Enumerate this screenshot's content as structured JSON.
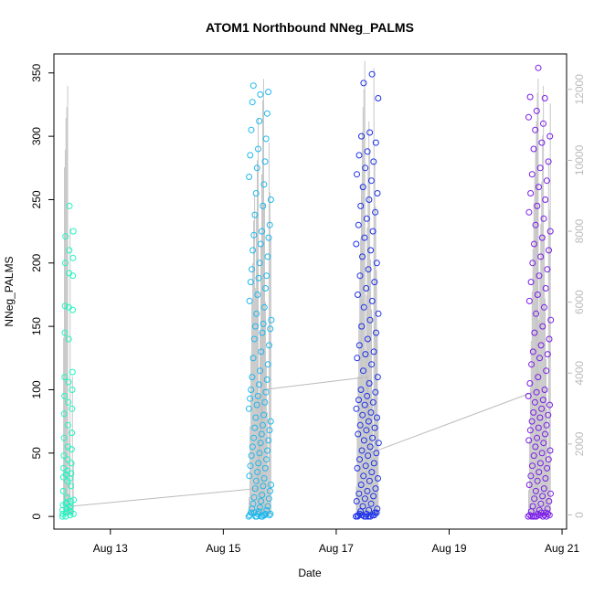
{
  "chart_data": {
    "type": "scatter",
    "title": "ATOM1 Northbound NNeg_PALMS",
    "xlabel": "Date",
    "ylabel": "NNeg_PALMS",
    "x_ticks": [
      "Aug 13",
      "Aug 15",
      "Aug 17",
      "Aug 19",
      "Aug 21"
    ],
    "xlim_days": [
      12.0,
      21.08
    ],
    "ylim": [
      -10,
      365
    ],
    "y_ticks": [
      0,
      50,
      100,
      150,
      200,
      250,
      300,
      350
    ],
    "y2lim": [
      -400,
      13000
    ],
    "y2_ticks": [
      0,
      2000,
      4000,
      6000,
      8000,
      10000,
      12000
    ],
    "secondary_series": {
      "name": "",
      "color": "#c8c8c8",
      "style": "vertical-lines"
    },
    "series": [
      {
        "date": "Aug 12",
        "color": "#1ff5c0",
        "x_range_days": [
          12.15,
          12.35
        ],
        "y": [
          0,
          1,
          3,
          5,
          8,
          11,
          2,
          4,
          6,
          9,
          12,
          15,
          20,
          24,
          28,
          31,
          34,
          36,
          38,
          42,
          45,
          48,
          53,
          55,
          62,
          66,
          72,
          81,
          85,
          90,
          95,
          100,
          106,
          110,
          114,
          140,
          145,
          163,
          165,
          166,
          190,
          192,
          200,
          204,
          210,
          221,
          225,
          245,
          0,
          2,
          7,
          10,
          13,
          30,
          33
        ],
        "secondary": [
          0,
          5000,
          9800,
          10300,
          11200,
          11500,
          12100,
          600,
          2400,
          8100,
          300,
          200,
          3900,
          1500
        ]
      },
      {
        "date": "Aug 15",
        "color": "#1eb8ee",
        "x_range_days": [
          15.45,
          15.85
        ],
        "y": [
          0,
          0,
          1,
          1,
          2,
          2,
          3,
          4,
          5,
          6,
          7,
          8,
          10,
          12,
          14,
          15,
          17,
          20,
          22,
          24,
          25,
          28,
          30,
          32,
          35,
          38,
          40,
          42,
          45,
          48,
          50,
          52,
          55,
          58,
          60,
          62,
          65,
          68,
          70,
          72,
          75,
          78,
          80,
          85,
          88,
          90,
          93,
          95,
          98,
          100,
          104,
          108,
          110,
          115,
          120,
          125,
          130,
          135,
          140,
          145,
          148,
          150,
          152,
          155,
          160,
          165,
          170,
          175,
          180,
          185,
          188,
          190,
          195,
          200,
          205,
          210,
          215,
          220,
          222,
          225,
          230,
          238,
          245,
          250,
          255,
          262,
          268,
          275,
          280,
          285,
          290,
          298,
          305,
          312,
          318,
          327,
          333,
          335,
          340,
          0,
          1,
          3,
          0,
          2,
          0,
          1
        ],
        "secondary": [
          500,
          2500,
          4500,
          6000,
          7100,
          8300,
          9000,
          6400,
          8500,
          10000,
          11200,
          3400,
          5200,
          7600,
          9600,
          11700,
          12300,
          8800,
          6000,
          4200,
          2900,
          1400,
          10500,
          9100,
          7800
        ]
      },
      {
        "date": "Aug 17",
        "color": "#1d32e8",
        "x_range_days": [
          17.35,
          17.75
        ],
        "y": [
          0,
          0,
          1,
          1,
          2,
          3,
          4,
          5,
          6,
          8,
          10,
          12,
          14,
          16,
          18,
          20,
          22,
          25,
          28,
          30,
          32,
          35,
          38,
          40,
          42,
          45,
          48,
          50,
          52,
          55,
          58,
          60,
          62,
          65,
          68,
          70,
          72,
          75,
          78,
          80,
          82,
          85,
          88,
          90,
          92,
          95,
          98,
          100,
          105,
          110,
          115,
          120,
          125,
          128,
          130,
          135,
          140,
          145,
          150,
          155,
          160,
          165,
          170,
          175,
          180,
          185,
          190,
          195,
          200,
          205,
          210,
          215,
          220,
          225,
          230,
          235,
          240,
          245,
          250,
          255,
          260,
          265,
          270,
          275,
          280,
          285,
          288,
          295,
          300,
          303,
          330,
          342,
          349,
          0,
          0,
          1,
          2,
          0,
          3,
          1,
          0
        ],
        "secondary": [
          800,
          2200,
          3900,
          5400,
          6700,
          7800,
          9300,
          10800,
          11500,
          12000,
          12800,
          4600,
          6200,
          8100,
          9700,
          11100,
          10200,
          7200,
          5800,
          3300,
          1700,
          12600,
          9900,
          8700,
          6900,
          5100,
          2800
        ]
      },
      {
        "date": "Aug 20",
        "color": "#7a1de8",
        "x_range_days": [
          20.4,
          20.8
        ],
        "y": [
          0,
          0,
          1,
          1,
          2,
          3,
          4,
          5,
          6,
          8,
          10,
          12,
          14,
          16,
          18,
          20,
          22,
          25,
          28,
          30,
          32,
          35,
          38,
          40,
          42,
          45,
          48,
          50,
          52,
          55,
          58,
          60,
          62,
          65,
          68,
          70,
          72,
          75,
          78,
          80,
          82,
          85,
          88,
          90,
          92,
          95,
          98,
          100,
          105,
          110,
          115,
          120,
          125,
          128,
          130,
          135,
          140,
          145,
          150,
          155,
          160,
          165,
          170,
          175,
          180,
          185,
          190,
          195,
          200,
          205,
          210,
          215,
          220,
          225,
          230,
          235,
          240,
          245,
          250,
          255,
          260,
          265,
          270,
          275,
          280,
          290,
          295,
          300,
          305,
          310,
          315,
          320,
          330,
          331,
          354,
          0,
          0,
          1,
          2,
          0,
          3,
          1,
          0,
          0
        ],
        "secondary": [
          700,
          2100,
          3600,
          4900,
          6300,
          7500,
          8800,
          9600,
          10400,
          11100,
          11900,
          12300,
          5500,
          6800,
          8200,
          9400,
          10700,
          12100,
          7900,
          6100,
          4400,
          3000,
          1500,
          10000,
          8600,
          11600
        ]
      }
    ],
    "connector": {
      "color": "#bbbbbb",
      "points": [
        [
          12.3,
          8
        ],
        [
          15.6,
          22
        ],
        [
          15.7,
          100
        ],
        [
          17.55,
          110
        ],
        [
          17.6,
          50
        ],
        [
          20.6,
          100
        ]
      ]
    }
  }
}
